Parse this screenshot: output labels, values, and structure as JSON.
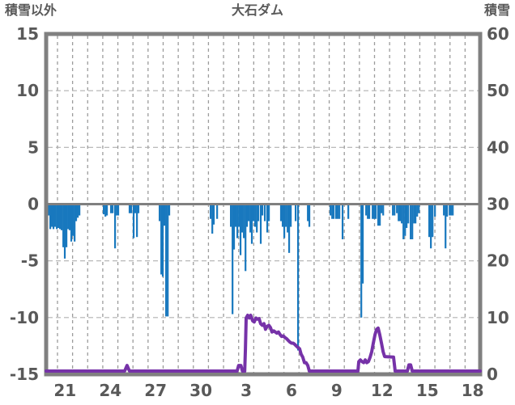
{
  "title": "大石ダム",
  "corner_labels": {
    "left": "積雪以外",
    "right": "積雪"
  },
  "colors": {
    "bar": "#1878be",
    "line": "#7632a8",
    "border": "#808080",
    "zero_line": "#808080",
    "grid": "#9c9c9c",
    "text": "#595959",
    "background": "#ffffff"
  },
  "chart_data": {
    "type": "bar",
    "title": "大石ダム",
    "subtitle": "",
    "grid": true,
    "legend_position": "none",
    "x_axis": {
      "tick_labels": [
        "21",
        "24",
        "27",
        "30",
        "3",
        "6",
        "9",
        "12",
        "15",
        "18"
      ],
      "tick_label_day_centers": [
        0.5,
        3.5,
        6.5,
        9.5,
        12.5,
        15.5,
        18.5,
        21.5,
        24.5,
        27.5
      ],
      "range_days": [
        -0.75,
        28
      ],
      "gridline_every_days": 1,
      "note": "x measured in days; 0 = start of day 21"
    },
    "left_axis": {
      "label": "積雪以外",
      "ticks": [
        15,
        10,
        5,
        0,
        -5,
        -10,
        -15
      ],
      "range": [
        -15,
        15
      ]
    },
    "right_axis": {
      "label": "積雪",
      "ticks": [
        60,
        50,
        40,
        30,
        20,
        10,
        0
      ],
      "range": [
        0,
        60
      ]
    },
    "series": [
      {
        "name": "積雪以外",
        "type": "bar",
        "axis": "left",
        "color": "#1878be",
        "points": [
          [
            -0.59,
            -1.0
          ],
          [
            -0.48,
            -2.2
          ],
          [
            -0.38,
            -2.0
          ],
          [
            -0.27,
            -2.2
          ],
          [
            -0.16,
            -2.0
          ],
          [
            -0.05,
            -2.2
          ],
          [
            0.05,
            -2.1
          ],
          [
            0.16,
            -2.2
          ],
          [
            0.27,
            -2.3
          ],
          [
            0.38,
            -3.8
          ],
          [
            0.48,
            -4.8
          ],
          [
            0.59,
            -3.8
          ],
          [
            0.7,
            -2.2
          ],
          [
            0.8,
            -2.3
          ],
          [
            0.91,
            -3.3
          ],
          [
            1.02,
            -2.8
          ],
          [
            1.13,
            -3.3
          ],
          [
            1.23,
            -1.5
          ],
          [
            1.34,
            -1.2
          ],
          [
            1.45,
            -1.0
          ],
          [
            3.06,
            -0.9
          ],
          [
            3.17,
            -1.1
          ],
          [
            3.27,
            -1.0
          ],
          [
            3.54,
            -0.8
          ],
          [
            3.65,
            -0.8
          ],
          [
            3.81,
            -3.9
          ],
          [
            3.92,
            -1.0
          ],
          [
            4.02,
            -1.0
          ],
          [
            4.77,
            -0.8
          ],
          [
            4.88,
            -0.8
          ],
          [
            5.04,
            -3.0
          ],
          [
            5.15,
            -0.8
          ],
          [
            5.26,
            -2.9
          ],
          [
            5.36,
            -0.8
          ],
          [
            6.76,
            -1.5
          ],
          [
            6.87,
            -6.2
          ],
          [
            6.97,
            -6.4
          ],
          [
            7.08,
            -1.9
          ],
          [
            7.19,
            -9.9
          ],
          [
            7.3,
            -9.9
          ],
          [
            7.4,
            -1.0
          ],
          [
            10.14,
            -1.3
          ],
          [
            10.25,
            -2.6
          ],
          [
            10.35,
            -1.8
          ],
          [
            10.57,
            -1.3
          ],
          [
            11.48,
            -2.0
          ],
          [
            11.59,
            -9.7
          ],
          [
            11.69,
            -4.0
          ],
          [
            11.8,
            -2.0
          ],
          [
            11.91,
            -3.0
          ],
          [
            12.02,
            -2.0
          ],
          [
            12.12,
            -4.5
          ],
          [
            12.23,
            -2.5
          ],
          [
            12.34,
            -3.0
          ],
          [
            12.45,
            -5.9
          ],
          [
            12.55,
            -2.0
          ],
          [
            12.66,
            -1.5
          ],
          [
            12.77,
            -2.5
          ],
          [
            12.87,
            -3.5
          ],
          [
            12.98,
            -1.5
          ],
          [
            13.09,
            -2.0
          ],
          [
            13.2,
            -2.5
          ],
          [
            13.3,
            -1.5
          ],
          [
            13.46,
            -3.5
          ],
          [
            13.57,
            -1.0
          ],
          [
            13.73,
            -1.5
          ],
          [
            13.89,
            -2.5
          ],
          [
            14.0,
            -1.5
          ],
          [
            14.8,
            -1.5
          ],
          [
            14.91,
            -2.0
          ],
          [
            15.02,
            -3.0
          ],
          [
            15.13,
            -2.0
          ],
          [
            15.24,
            -2.5
          ],
          [
            15.34,
            -4.3
          ],
          [
            15.45,
            -2.0
          ],
          [
            15.77,
            -1.5
          ],
          [
            15.93,
            -12.9
          ],
          [
            16.58,
            -1.5
          ],
          [
            16.68,
            -2.0
          ],
          [
            18.08,
            -1.0
          ],
          [
            18.19,
            -1.3
          ],
          [
            18.29,
            -1.3
          ],
          [
            18.45,
            -1.3
          ],
          [
            18.56,
            -1.3
          ],
          [
            18.67,
            -1.3
          ],
          [
            18.88,
            -3.1
          ],
          [
            19.26,
            -1.3
          ],
          [
            20.12,
            -10.0
          ],
          [
            20.22,
            -7.0
          ],
          [
            20.44,
            -1.0
          ],
          [
            20.55,
            -1.3
          ],
          [
            20.65,
            -1.3
          ],
          [
            20.87,
            -1.3
          ],
          [
            20.97,
            -1.3
          ],
          [
            21.08,
            -1.3
          ],
          [
            21.24,
            -1.9
          ],
          [
            21.35,
            -1.9
          ],
          [
            21.46,
            -0.8
          ],
          [
            21.57,
            -1.0
          ],
          [
            22.21,
            -1.0
          ],
          [
            22.32,
            -1.0
          ],
          [
            22.48,
            -0.8
          ],
          [
            22.59,
            -1.5
          ],
          [
            22.69,
            -1.5
          ],
          [
            22.8,
            -1.7
          ],
          [
            22.91,
            -3.1
          ],
          [
            23.02,
            -2.8
          ],
          [
            23.12,
            -2.1
          ],
          [
            23.23,
            -1.7
          ],
          [
            23.39,
            -3.1
          ],
          [
            23.5,
            -3.1
          ],
          [
            23.61,
            -1.7
          ],
          [
            23.71,
            -1.7
          ],
          [
            23.82,
            -1.1
          ],
          [
            23.93,
            -0.8
          ],
          [
            24.62,
            -2.9
          ],
          [
            24.73,
            -3.9
          ],
          [
            24.84,
            -2.9
          ],
          [
            25.0,
            -1.1
          ],
          [
            25.59,
            -1.0
          ],
          [
            25.7,
            -3.9
          ],
          [
            25.8,
            -1.1
          ],
          [
            25.97,
            -1.0
          ],
          [
            26.07,
            -1.0
          ],
          [
            26.18,
            -1.0
          ]
        ]
      },
      {
        "name": "積雪",
        "type": "line",
        "axis": "right",
        "color": "#7632a8",
        "points": [
          [
            -0.75,
            0
          ],
          [
            4.45,
            0
          ],
          [
            4.61,
            1
          ],
          [
            4.77,
            0
          ],
          [
            11.9,
            0
          ],
          [
            12.0,
            1
          ],
          [
            12.15,
            1
          ],
          [
            12.25,
            0
          ],
          [
            12.4,
            0
          ],
          [
            12.45,
            4
          ],
          [
            12.5,
            9.5
          ],
          [
            12.6,
            10
          ],
          [
            12.7,
            9.5
          ],
          [
            12.8,
            10
          ],
          [
            12.93,
            9
          ],
          [
            13.03,
            8.8
          ],
          [
            13.14,
            9.5
          ],
          [
            13.25,
            9.3
          ],
          [
            13.35,
            9.4
          ],
          [
            13.46,
            8.5
          ],
          [
            13.57,
            8.2
          ],
          [
            13.68,
            8.5
          ],
          [
            13.78,
            7.5
          ],
          [
            13.89,
            8
          ],
          [
            14.0,
            8.2
          ],
          [
            14.11,
            7.8
          ],
          [
            14.21,
            7
          ],
          [
            14.32,
            7.2
          ],
          [
            14.43,
            7
          ],
          [
            14.53,
            6.8
          ],
          [
            14.64,
            7
          ],
          [
            14.75,
            6.5
          ],
          [
            14.85,
            6.2
          ],
          [
            14.96,
            6.3
          ],
          [
            15.07,
            6
          ],
          [
            15.18,
            5.8
          ],
          [
            15.28,
            5.5
          ],
          [
            15.39,
            5.2
          ],
          [
            15.5,
            5
          ],
          [
            15.61,
            5
          ],
          [
            15.71,
            4.8
          ],
          [
            15.82,
            4.5
          ],
          [
            15.93,
            4.2
          ],
          [
            16.04,
            4
          ],
          [
            16.14,
            3
          ],
          [
            16.25,
            2.5
          ],
          [
            16.36,
            1.5
          ],
          [
            16.47,
            1.5
          ],
          [
            16.58,
            1
          ],
          [
            16.68,
            0
          ],
          [
            19.9,
            0
          ],
          [
            19.96,
            1.7
          ],
          [
            20.06,
            2
          ],
          [
            20.17,
            1.7
          ],
          [
            20.28,
            1.5
          ],
          [
            20.39,
            2
          ],
          [
            20.49,
            1.5
          ],
          [
            20.6,
            1.7
          ],
          [
            20.71,
            2.5
          ],
          [
            20.82,
            3.5
          ],
          [
            20.92,
            5
          ],
          [
            21.03,
            6.5
          ],
          [
            21.14,
            7.5
          ],
          [
            21.24,
            7.7
          ],
          [
            21.35,
            6.5
          ],
          [
            21.46,
            5
          ],
          [
            21.57,
            3.5
          ],
          [
            21.67,
            2.6
          ],
          [
            22.26,
            2.5
          ],
          [
            22.37,
            0
          ],
          [
            23.18,
            0
          ],
          [
            23.28,
            1.1
          ],
          [
            23.39,
            1.1
          ],
          [
            23.5,
            0
          ],
          [
            28.0,
            0
          ]
        ]
      }
    ]
  }
}
